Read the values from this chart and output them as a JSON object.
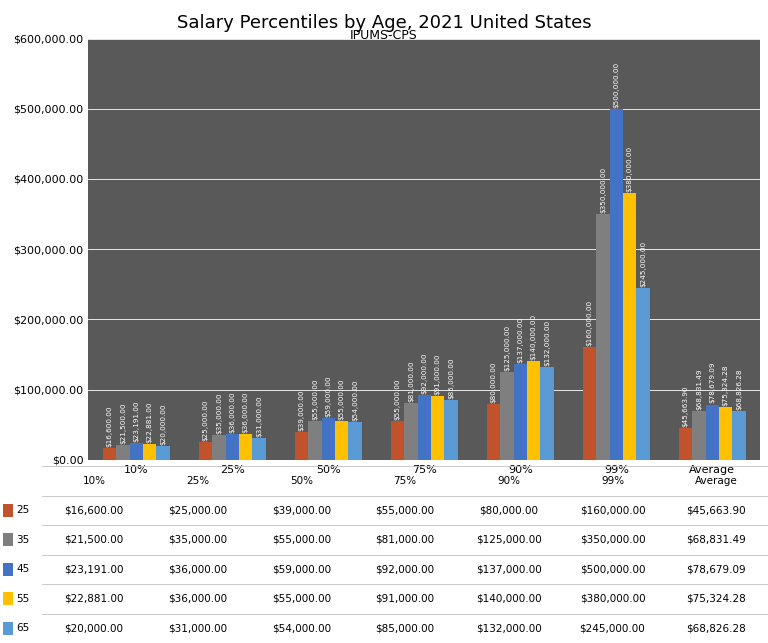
{
  "title": "Salary Percentiles by Age, 2021 United States",
  "subtitle": "IPUMS-CPS",
  "categories": [
    "10%",
    "25%",
    "50%",
    "75%",
    "90%",
    "99%",
    "Average"
  ],
  "series": [
    {
      "label": "25",
      "color": "#C0522C",
      "values": [
        16600,
        25000,
        39000,
        55000,
        80000,
        160000,
        45663.9
      ]
    },
    {
      "label": "35",
      "color": "#7F7F7F",
      "values": [
        21500,
        35000,
        55000,
        81000,
        125000,
        350000,
        68831.49
      ]
    },
    {
      "label": "45",
      "color": "#4472C4",
      "values": [
        23191,
        36000,
        59000,
        92000,
        137000,
        500000,
        78679.09
      ]
    },
    {
      "label": "55",
      "color": "#FFC000",
      "values": [
        22881,
        36000,
        55000,
        91000,
        140000,
        380000,
        75324.28
      ]
    },
    {
      "label": "65",
      "color": "#5B9BD5",
      "values": [
        20000,
        31000,
        54000,
        85000,
        132000,
        245000,
        68826.28
      ]
    }
  ],
  "ylim": [
    0,
    600000
  ],
  "yticks": [
    0,
    100000,
    200000,
    300000,
    400000,
    500000,
    600000
  ],
  "background_color": "#595959",
  "fig_background": "#FFFFFF",
  "grid_color": "#FFFFFF",
  "title_fontsize": 13,
  "subtitle_fontsize": 9,
  "bar_label_fontsize": 5.2,
  "table_fontsize": 7.5,
  "tick_fontsize": 8,
  "table_data": [
    [
      "25",
      "$16,600.00",
      "$25,000.00",
      "$39,000.00",
      "$55,000.00",
      "$80,000.00",
      "$160,000.00",
      "$45,663.90"
    ],
    [
      "35",
      "$21,500.00",
      "$35,000.00",
      "$55,000.00",
      "$81,000.00",
      "$125,000.00",
      "$350,000.00",
      "$68,831.49"
    ],
    [
      "45",
      "$23,191.00",
      "$36,000.00",
      "$59,000.00",
      "$92,000.00",
      "$137,000.00",
      "$500,000.00",
      "$78,679.09"
    ],
    [
      "55",
      "$22,881.00",
      "$36,000.00",
      "$55,000.00",
      "$91,000.00",
      "$140,000.00",
      "$380,000.00",
      "$75,324.28"
    ],
    [
      "65",
      "$20,000.00",
      "$31,000.00",
      "$54,000.00",
      "$85,000.00",
      "$132,000.00",
      "$245,000.00",
      "$68,826.28"
    ]
  ],
  "col_labels": [
    "",
    "10%",
    "25%",
    "50%",
    "75%",
    "90%",
    "99%",
    "Average"
  ]
}
